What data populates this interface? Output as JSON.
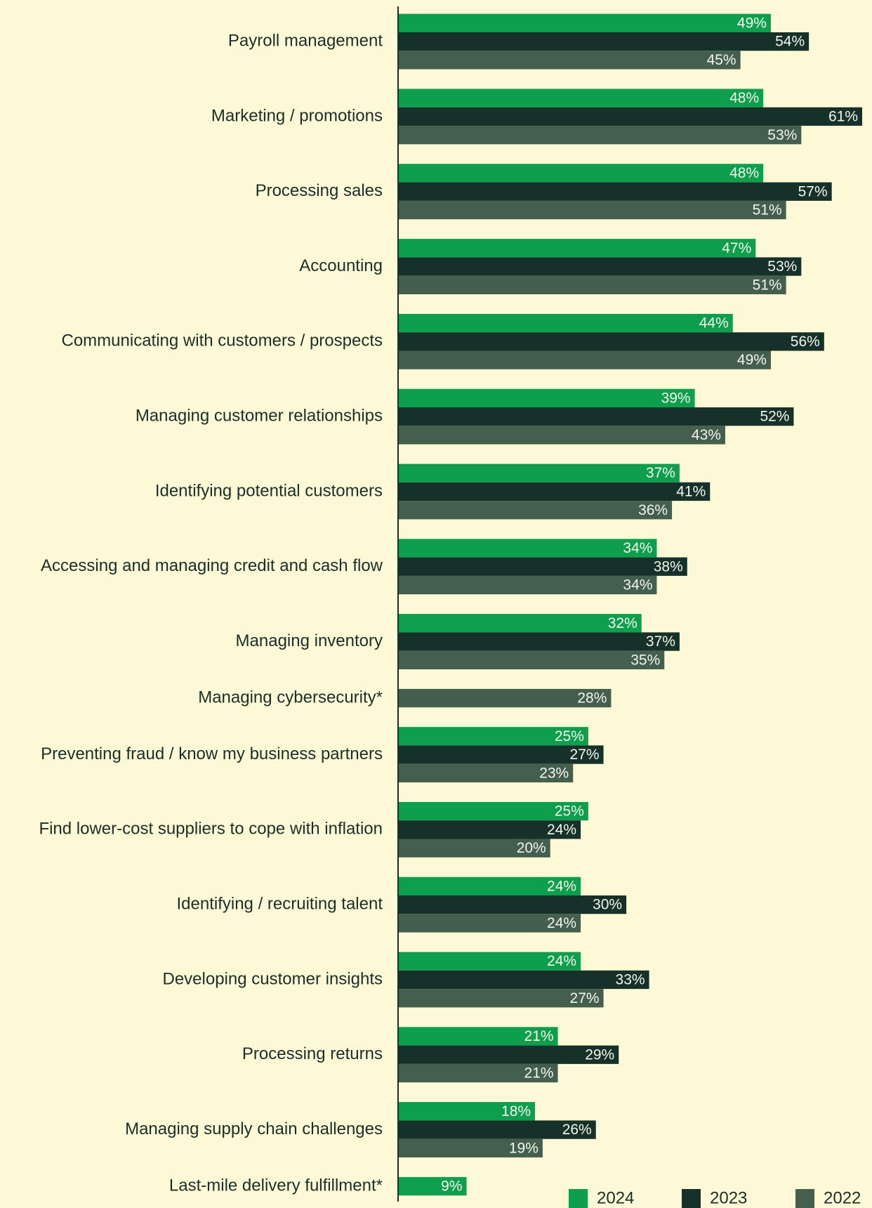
{
  "chart_data": {
    "type": "bar",
    "orientation": "horizontal",
    "categories": [
      "Payroll management",
      "Marketing / promotions",
      "Processing sales",
      "Accounting",
      "Communicating with customers / prospects",
      "Managing customer relationships",
      "Identifying potential customers",
      "Accessing and managing credit and cash flow",
      "Managing inventory",
      "Managing cybersecurity*",
      "Preventing fraud / know my business partners",
      "Find lower-cost suppliers to cope with inflation",
      "Identifying / recruiting talent",
      "Developing customer insights",
      "Processing returns",
      "Managing supply chain challenges",
      "Last-mile delivery fulfillment*"
    ],
    "series": [
      {
        "name": "2024",
        "color": "#0e9f4e",
        "values": [
          49,
          48,
          48,
          47,
          44,
          39,
          37,
          34,
          32,
          null,
          25,
          25,
          24,
          24,
          21,
          18,
          9
        ],
        "value_labels": [
          "49%",
          "48%",
          "48%",
          "47%",
          "44%",
          "39%",
          "37%",
          "34%",
          "32%",
          null,
          "25%",
          "25%",
          "24%",
          "24%",
          "21%",
          "18%",
          "9%"
        ]
      },
      {
        "name": "2023",
        "color": "#16302a",
        "values": [
          54,
          61,
          57,
          53,
          56,
          52,
          41,
          38,
          37,
          null,
          27,
          24,
          30,
          33,
          29,
          26,
          null
        ],
        "value_labels": [
          "54%",
          "61%",
          "57%",
          "53%",
          "56%",
          "52%",
          "41%",
          "38%",
          "37%",
          null,
          "27%",
          "24%",
          "30%",
          "33%",
          "29%",
          "26%",
          null
        ]
      },
      {
        "name": "2022",
        "color": "#445f4e",
        "values": [
          45,
          53,
          51,
          51,
          49,
          43,
          36,
          34,
          35,
          28,
          23,
          20,
          24,
          27,
          21,
          19,
          null
        ],
        "value_labels": [
          "45%",
          "53%",
          "51%",
          "51%",
          "49%",
          "43%",
          "36%",
          "34%",
          "35%",
          "28%",
          "23%",
          "20%",
          "24%",
          "27%",
          "21%",
          "19%",
          null
        ]
      }
    ],
    "legend": "bottom-right"
  }
}
